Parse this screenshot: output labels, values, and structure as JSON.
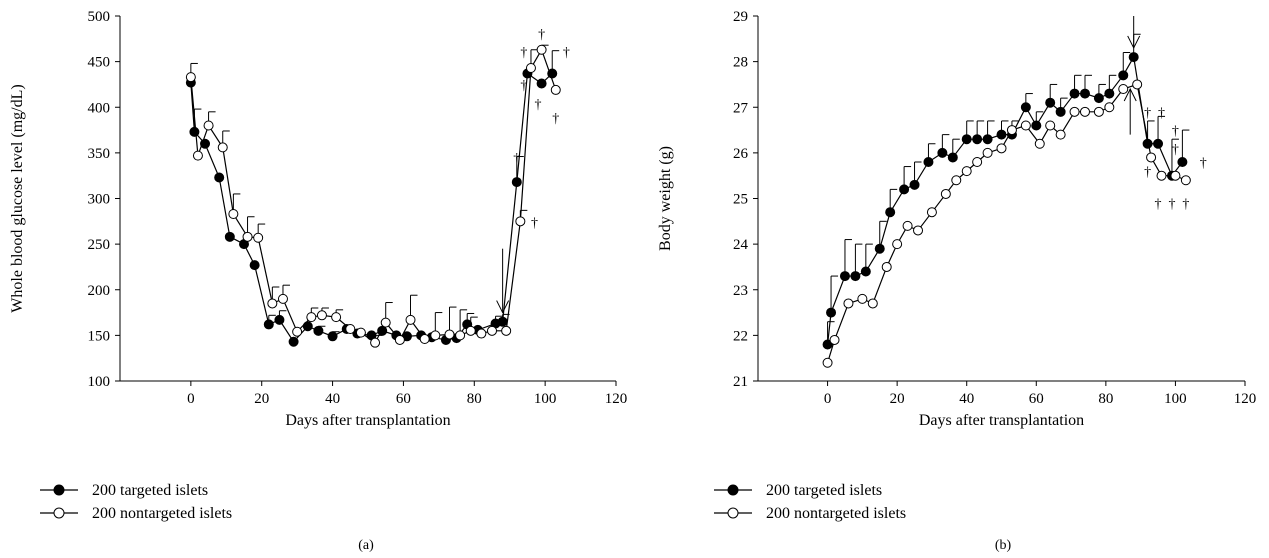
{
  "chart_data": [
    {
      "type": "line",
      "panel_label": "(a)",
      "xlabel": "Days after transplantation",
      "ylabel": "Whole blood glucose level (mg/dL)",
      "xlim": [
        -20,
        120
      ],
      "ylim": [
        100,
        500
      ],
      "xticks": [
        0,
        20,
        40,
        60,
        80,
        100,
        120
      ],
      "yticks": [
        100,
        150,
        200,
        250,
        300,
        350,
        400,
        450,
        500
      ],
      "legend_position": "bottom-left",
      "series": [
        {
          "name": "200 targeted islets",
          "marker": "filled-circle",
          "color": "#000000",
          "x": [
            0,
            1,
            4,
            8,
            11,
            15,
            18,
            22,
            25,
            29,
            33,
            36,
            40,
            44,
            47,
            51,
            54,
            58,
            61,
            65,
            68,
            72,
            75,
            78,
            81,
            86,
            88,
            92,
            95,
            99,
            102
          ],
          "y": [
            427,
            373,
            360,
            323,
            258,
            250,
            227,
            162,
            167,
            143,
            160,
            155,
            149,
            157,
            152,
            150,
            155,
            150,
            149,
            150,
            148,
            145,
            147,
            162,
            156,
            163,
            165,
            318,
            437,
            426,
            437
          ],
          "err": [
            0,
            25,
            0,
            0,
            0,
            0,
            0,
            10,
            10,
            0,
            8,
            5,
            5,
            0,
            0,
            0,
            0,
            0,
            0,
            0,
            0,
            0,
            0,
            12,
            0,
            8,
            8,
            28,
            0,
            0,
            25
          ]
        },
        {
          "name": "200 nontargeted islets",
          "marker": "open-circle",
          "color": "#000000",
          "x": [
            0,
            2,
            5,
            9,
            12,
            16,
            19,
            23,
            26,
            30,
            34,
            37,
            41,
            45,
            48,
            52,
            55,
            59,
            62,
            66,
            69,
            73,
            76,
            79,
            82,
            85,
            89,
            93,
            96,
            99,
            103
          ],
          "y": [
            433,
            347,
            380,
            356,
            283,
            258,
            257,
            185,
            190,
            154,
            170,
            172,
            170,
            157,
            153,
            142,
            164,
            145,
            167,
            146,
            150,
            151,
            150,
            155,
            152,
            155,
            155,
            275,
            443,
            463,
            419
          ],
          "err": [
            15,
            0,
            15,
            18,
            22,
            22,
            15,
            18,
            15,
            0,
            10,
            8,
            8,
            0,
            0,
            8,
            22,
            0,
            27,
            0,
            25,
            30,
            28,
            15,
            0,
            0,
            0,
            12,
            20,
            5,
            0
          ]
        }
      ],
      "annotations": [
        {
          "type": "arrow",
          "x": 88,
          "y_from": 245,
          "y_to": 175,
          "direction": "down"
        },
        {
          "type": "dagger",
          "text": "†",
          "x": 99,
          "y": 481
        },
        {
          "type": "dagger",
          "text": "†",
          "x": 94,
          "y": 461
        },
        {
          "type": "dagger",
          "text": "†",
          "x": 106,
          "y": 461
        },
        {
          "type": "dagger",
          "text": "†",
          "x": 94,
          "y": 425
        },
        {
          "type": "dagger",
          "text": "†",
          "x": 98,
          "y": 404
        },
        {
          "type": "dagger",
          "text": "†",
          "x": 103,
          "y": 389
        },
        {
          "type": "dagger",
          "text": "†",
          "x": 92,
          "y": 345
        },
        {
          "type": "dagger",
          "text": "†",
          "x": 97,
          "y": 274
        }
      ]
    },
    {
      "type": "line",
      "panel_label": "(b)",
      "xlabel": "Days after transplantation",
      "ylabel": "Body weight (g)",
      "xlim": [
        -20,
        120
      ],
      "ylim": [
        21,
        29
      ],
      "xticks": [
        0,
        20,
        40,
        60,
        80,
        100,
        120
      ],
      "yticks": [
        21,
        22,
        23,
        24,
        25,
        26,
        27,
        28,
        29
      ],
      "legend_position": "bottom-left",
      "series": [
        {
          "name": "200 targeted islets",
          "marker": "filled-circle",
          "color": "#000000",
          "x": [
            0,
            1,
            5,
            8,
            11,
            15,
            18,
            22,
            25,
            29,
            33,
            36,
            40,
            43,
            46,
            50,
            53,
            57,
            60,
            64,
            67,
            71,
            74,
            78,
            81,
            85,
            88,
            92,
            95,
            99,
            102
          ],
          "y": [
            21.8,
            22.5,
            23.3,
            23.3,
            23.4,
            23.9,
            24.7,
            25.2,
            25.3,
            25.8,
            26.0,
            25.9,
            26.3,
            26.3,
            26.3,
            26.4,
            26.4,
            27.0,
            26.6,
            27.1,
            26.9,
            27.3,
            27.3,
            27.2,
            27.3,
            27.7,
            28.1,
            26.2,
            26.2,
            25.5,
            25.8
          ],
          "err": [
            0.5,
            0.8,
            0.8,
            0.7,
            0.6,
            0.6,
            0.5,
            0.5,
            0.5,
            0.4,
            0.4,
            0.4,
            0.4,
            0.4,
            0.4,
            0.3,
            0.3,
            0.3,
            0.3,
            0.4,
            0.3,
            0.4,
            0.4,
            0.3,
            0.4,
            0.5,
            0.5,
            0.5,
            0.6,
            0.8,
            0.7
          ]
        },
        {
          "name": "200 nontargeted islets",
          "marker": "open-circle",
          "color": "#000000",
          "x": [
            0,
            2,
            6,
            10,
            13,
            17,
            20,
            23,
            26,
            30,
            34,
            37,
            40,
            43,
            46,
            50,
            53,
            57,
            61,
            64,
            67,
            71,
            74,
            78,
            81,
            85,
            89,
            93,
            96,
            100,
            103
          ],
          "y": [
            21.4,
            21.9,
            22.7,
            22.8,
            22.7,
            23.5,
            24.0,
            24.4,
            24.3,
            24.7,
            25.1,
            25.4,
            25.6,
            25.8,
            26.0,
            26.1,
            26.5,
            26.6,
            26.2,
            26.6,
            26.4,
            26.9,
            26.9,
            26.9,
            27.0,
            27.4,
            27.5,
            25.9,
            25.5,
            25.5,
            25.4
          ],
          "err": [
            0,
            0,
            0,
            0,
            0,
            0,
            0,
            0,
            0,
            0,
            0,
            0,
            0,
            0,
            0,
            0,
            0,
            0,
            0,
            0,
            0,
            0,
            0,
            0,
            0,
            0,
            0,
            0,
            0,
            0,
            0
          ]
        }
      ],
      "annotations": [
        {
          "type": "arrow",
          "x": 88,
          "y_from": 29.0,
          "y_to": 28.3,
          "direction": "down"
        },
        {
          "type": "arrow",
          "x": 87,
          "y_from": 26.4,
          "y_to": 27.4,
          "direction": "up"
        },
        {
          "type": "dagger",
          "text": "†",
          "x": 92,
          "y": 26.9
        },
        {
          "type": "dagger",
          "text": "†",
          "x": 96,
          "y": 26.9
        },
        {
          "type": "dagger",
          "text": "†",
          "x": 100,
          "y": 26.5
        },
        {
          "type": "dagger",
          "text": "†",
          "x": 100,
          "y": 26.1
        },
        {
          "type": "dagger",
          "text": "†",
          "x": 108,
          "y": 25.8
        },
        {
          "type": "dagger",
          "text": "†",
          "x": 92,
          "y": 25.6
        },
        {
          "type": "dagger",
          "text": "†",
          "x": 95,
          "y": 24.9
        },
        {
          "type": "dagger",
          "text": "†",
          "x": 99,
          "y": 24.9
        },
        {
          "type": "dagger",
          "text": "†",
          "x": 103,
          "y": 24.9
        }
      ]
    }
  ]
}
